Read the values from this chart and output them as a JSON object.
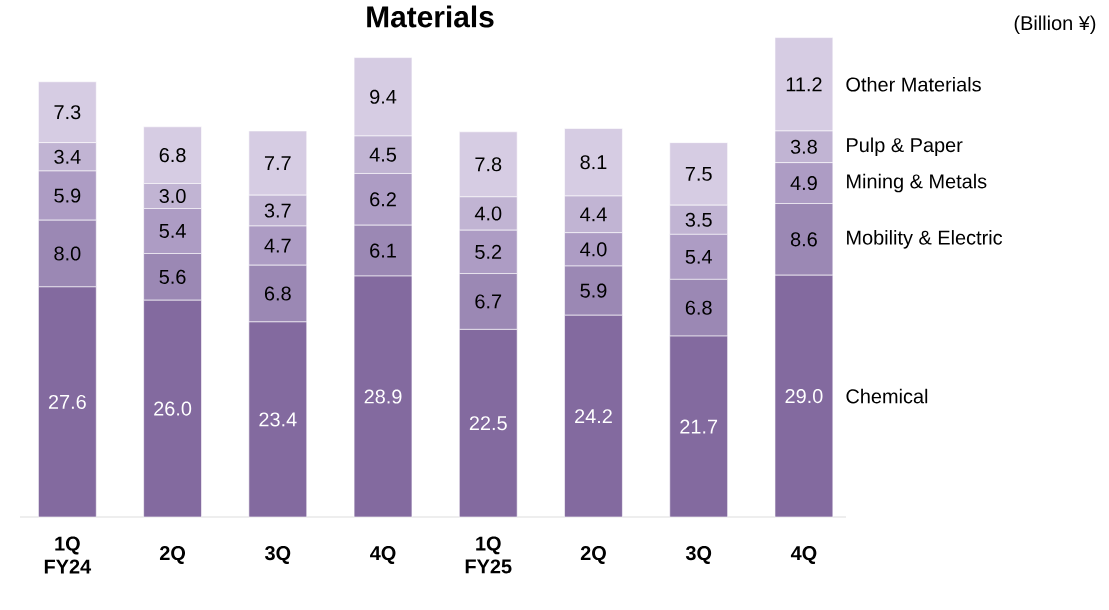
{
  "chart_data": {
    "type": "bar",
    "title": "Materials",
    "stacked": true,
    "annotations": [
      "(Billion ¥)"
    ],
    "categories": [
      "1Q FY24",
      "2Q",
      "3Q",
      "4Q",
      "1Q FY25",
      "2Q",
      "3Q",
      "4Q"
    ],
    "series": [
      {
        "name": "Chemical",
        "color": "#836a9f",
        "values": [
          27.6,
          26.0,
          23.4,
          28.9,
          22.5,
          24.2,
          21.7,
          29.0
        ],
        "value_labels": [
          "27.6",
          "26.0",
          "23.4",
          "28.9",
          "22.5",
          "24.2",
          "21.7",
          "29.0"
        ]
      },
      {
        "name": "Mobility & Electric",
        "color": "#9b88b4",
        "values": [
          8.0,
          5.6,
          6.8,
          6.1,
          6.7,
          5.9,
          6.8,
          8.6
        ],
        "value_labels": [
          "8.0",
          "5.6",
          "6.8",
          "6.1",
          "6.7",
          "5.9",
          "6.8",
          "8.6"
        ]
      },
      {
        "name": "Mining & Metals",
        "color": "#ad9cc4",
        "values": [
          5.9,
          5.4,
          4.7,
          6.2,
          5.2,
          4.0,
          5.4,
          4.9
        ],
        "value_labels": [
          "5.9",
          "5.4",
          "4.7",
          "6.2",
          "5.2",
          "4.0",
          "5.4",
          "4.9"
        ]
      },
      {
        "name": "Pulp & Paper",
        "color": "#c1b4d3",
        "values": [
          3.4,
          3.0,
          3.7,
          4.5,
          4.0,
          4.4,
          3.5,
          3.8
        ],
        "value_labels": [
          "3.4",
          "3.0",
          "3.7",
          "4.5",
          "4.0",
          "4.4",
          "3.5",
          "3.8"
        ]
      },
      {
        "name": "Other Materials",
        "color": "#d6cce3",
        "values": [
          7.3,
          6.8,
          7.7,
          9.4,
          7.8,
          8.1,
          7.5,
          11.2
        ],
        "value_labels": [
          "7.3",
          "6.8",
          "7.7",
          "9.4",
          "7.8",
          "8.1",
          "7.5",
          "11.2"
        ]
      }
    ]
  }
}
